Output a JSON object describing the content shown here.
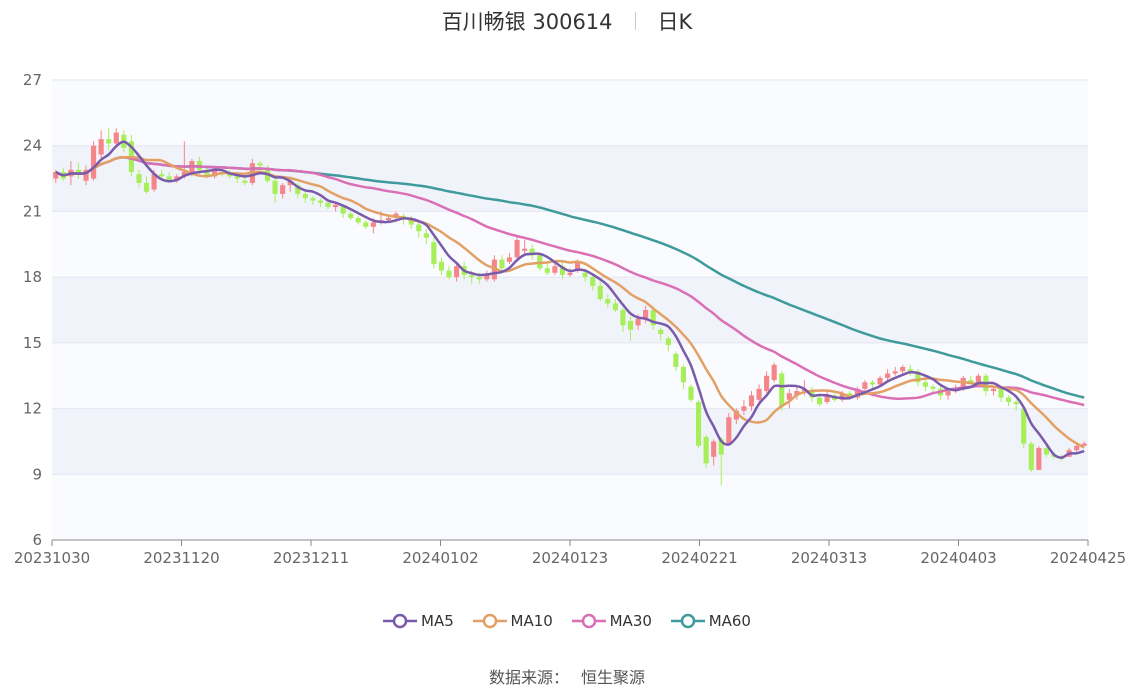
{
  "header": {
    "stock_name": "百川畅银 300614",
    "period": "日K"
  },
  "source": {
    "label": "数据来源：",
    "value": "恒生聚源"
  },
  "colors": {
    "up": "#f4868a",
    "down": "#a6ef5a",
    "band": "#f1f3fa",
    "plot_bg": "#fafbfe",
    "grid": "#e2e6f0",
    "ma5": "#7a5aab",
    "ma10": "#e3a065",
    "ma30": "#da6fb6",
    "ma60": "#3e9a9b"
  },
  "chart_data": {
    "type": "candlestick",
    "title": "百川畅银 300614 日K",
    "x_tick_labels": [
      "20231030",
      "20231120",
      "20231211",
      "20240102",
      "20240123",
      "20240221",
      "20240313",
      "20240403",
      "20240425"
    ],
    "y_ticks": [
      6,
      9,
      12,
      15,
      18,
      21,
      24,
      27
    ],
    "ylim": [
      6,
      27
    ],
    "legend": [
      {
        "name": "MA5",
        "color": "#7a5aab"
      },
      {
        "name": "MA10",
        "color": "#e3a065"
      },
      {
        "name": "MA30",
        "color": "#da6fb6"
      },
      {
        "name": "MA60",
        "color": "#3e9a9b"
      }
    ],
    "candles": [
      [
        22.5,
        22.8,
        22.9,
        22.3
      ],
      [
        22.8,
        22.5,
        23.0,
        22.4
      ],
      [
        22.6,
        22.9,
        23.3,
        22.2
      ],
      [
        22.9,
        22.7,
        23.2,
        22.5
      ],
      [
        22.4,
        22.9,
        23.1,
        22.2
      ],
      [
        22.5,
        24.0,
        24.2,
        22.4
      ],
      [
        23.6,
        24.3,
        24.7,
        23.4
      ],
      [
        24.3,
        24.1,
        24.8,
        23.8
      ],
      [
        24.1,
        24.6,
        24.8,
        23.9
      ],
      [
        24.5,
        23.9,
        24.7,
        23.7
      ],
      [
        24.2,
        22.8,
        24.5,
        22.6
      ],
      [
        22.7,
        22.3,
        22.9,
        22.1
      ],
      [
        22.3,
        21.9,
        22.6,
        21.8
      ],
      [
        22.0,
        22.7,
        22.9,
        21.9
      ],
      [
        22.7,
        22.6,
        22.9,
        22.5
      ],
      [
        22.6,
        22.4,
        22.8,
        22.3
      ],
      [
        22.4,
        22.6,
        22.7,
        22.3
      ],
      [
        22.6,
        22.8,
        24.2,
        22.5
      ],
      [
        22.8,
        23.3,
        23.4,
        22.6
      ],
      [
        23.3,
        22.9,
        23.5,
        22.7
      ],
      [
        22.9,
        22.6,
        23.1,
        22.5
      ],
      [
        22.6,
        22.9,
        23.0,
        22.5
      ],
      [
        22.8,
        22.7,
        22.9,
        22.6
      ],
      [
        22.7,
        22.6,
        22.9,
        22.5
      ],
      [
        22.6,
        22.5,
        22.8,
        22.3
      ],
      [
        22.4,
        22.3,
        22.6,
        22.2
      ],
      [
        22.3,
        23.2,
        23.4,
        22.2
      ],
      [
        23.2,
        23.1,
        23.3,
        22.9
      ],
      [
        23.0,
        22.4,
        23.1,
        22.3
      ],
      [
        22.4,
        21.8,
        22.6,
        21.4
      ],
      [
        21.8,
        22.2,
        22.3,
        21.6
      ],
      [
        22.2,
        22.4,
        22.6,
        21.9
      ],
      [
        22.2,
        21.8,
        22.3,
        21.6
      ],
      [
        21.8,
        21.6,
        21.9,
        21.4
      ],
      [
        21.6,
        21.5,
        21.7,
        21.3
      ],
      [
        21.5,
        21.4,
        21.6,
        21.2
      ],
      [
        21.4,
        21.2,
        21.5,
        21.1
      ],
      [
        21.2,
        21.3,
        21.4,
        21.0
      ],
      [
        21.2,
        20.9,
        21.3,
        20.7
      ],
      [
        20.9,
        20.7,
        21.0,
        20.6
      ],
      [
        20.7,
        20.5,
        20.8,
        20.4
      ],
      [
        20.5,
        20.3,
        20.6,
        20.2
      ],
      [
        20.3,
        20.5,
        20.7,
        20.0
      ],
      [
        20.5,
        20.6,
        21.0,
        20.4
      ],
      [
        20.6,
        20.7,
        20.8,
        20.5
      ],
      [
        20.7,
        20.9,
        21.0,
        20.5
      ],
      [
        20.8,
        20.7,
        20.9,
        20.4
      ],
      [
        20.7,
        20.4,
        20.8,
        20.2
      ],
      [
        20.4,
        20.1,
        20.5,
        19.8
      ],
      [
        20.0,
        19.8,
        20.2,
        19.5
      ],
      [
        19.6,
        18.6,
        19.8,
        18.4
      ],
      [
        18.7,
        18.3,
        18.9,
        18.1
      ],
      [
        18.3,
        18.0,
        18.5,
        17.9
      ],
      [
        18.0,
        18.5,
        18.6,
        17.8
      ],
      [
        18.5,
        18.1,
        18.7,
        17.9
      ],
      [
        18.1,
        18.0,
        18.3,
        17.7
      ],
      [
        18.0,
        17.9,
        18.2,
        17.7
      ],
      [
        17.9,
        18.1,
        18.3,
        17.8
      ],
      [
        17.9,
        18.8,
        19.0,
        17.8
      ],
      [
        18.8,
        18.4,
        19.0,
        18.3
      ],
      [
        18.7,
        18.9,
        19.1,
        18.6
      ],
      [
        18.9,
        19.7,
        19.9,
        18.7
      ],
      [
        19.2,
        19.3,
        19.7,
        19.0
      ],
      [
        19.3,
        19.0,
        19.5,
        18.8
      ],
      [
        19.0,
        18.4,
        19.1,
        18.3
      ],
      [
        18.4,
        18.2,
        18.6,
        18.1
      ],
      [
        18.2,
        18.5,
        18.7,
        18.1
      ],
      [
        18.5,
        18.1,
        18.7,
        17.9
      ],
      [
        18.1,
        18.2,
        18.4,
        18.0
      ],
      [
        18.3,
        18.7,
        18.8,
        18.2
      ],
      [
        18.2,
        18.0,
        18.4,
        17.8
      ],
      [
        18.0,
        17.6,
        18.2,
        17.4
      ],
      [
        17.6,
        17.0,
        17.8,
        16.9
      ],
      [
        17.0,
        16.8,
        17.2,
        16.6
      ],
      [
        16.8,
        16.5,
        17.0,
        16.4
      ],
      [
        16.5,
        15.8,
        16.6,
        15.5
      ],
      [
        16.0,
        15.6,
        16.2,
        15.1
      ],
      [
        15.8,
        16.1,
        16.3,
        15.6
      ],
      [
        16.1,
        16.5,
        16.7,
        15.9
      ],
      [
        16.5,
        15.8,
        16.7,
        15.6
      ],
      [
        15.6,
        15.4,
        15.7,
        15.1
      ],
      [
        15.2,
        14.9,
        15.3,
        14.6
      ],
      [
        14.5,
        13.9,
        14.6,
        13.7
      ],
      [
        13.9,
        13.2,
        14.0,
        12.9
      ],
      [
        13.0,
        12.4,
        13.1,
        12.3
      ],
      [
        12.3,
        10.3,
        12.4,
        10.2
      ],
      [
        10.7,
        9.5,
        10.8,
        9.3
      ],
      [
        9.8,
        10.5,
        10.6,
        9.4
      ],
      [
        10.6,
        9.9,
        10.7,
        8.5
      ],
      [
        10.4,
        11.6,
        11.8,
        10.3
      ],
      [
        11.5,
        11.9,
        12.0,
        11.3
      ],
      [
        11.9,
        12.1,
        12.4,
        11.7
      ],
      [
        12.1,
        12.6,
        12.8,
        11.9
      ],
      [
        12.4,
        12.9,
        13.1,
        12.2
      ],
      [
        12.8,
        13.5,
        13.7,
        12.7
      ],
      [
        13.3,
        14.0,
        14.1,
        13.2
      ],
      [
        13.6,
        12.1,
        13.7,
        11.9
      ],
      [
        12.4,
        12.7,
        12.9,
        12.0
      ],
      [
        12.6,
        12.8,
        13.0,
        12.4
      ],
      [
        12.8,
        12.9,
        13.3,
        12.6
      ],
      [
        12.8,
        12.5,
        13.0,
        12.3
      ],
      [
        12.5,
        12.2,
        12.6,
        12.1
      ],
      [
        12.3,
        12.6,
        12.8,
        12.2
      ],
      [
        12.6,
        12.4,
        12.7,
        12.3
      ],
      [
        12.4,
        12.7,
        12.8,
        12.3
      ],
      [
        12.7,
        12.5,
        12.8,
        12.4
      ],
      [
        12.5,
        12.9,
        13.0,
        12.4
      ],
      [
        12.9,
        13.2,
        13.3,
        12.8
      ],
      [
        13.2,
        13.1,
        13.3,
        12.9
      ],
      [
        13.1,
        13.4,
        13.5,
        13.0
      ],
      [
        13.4,
        13.6,
        13.8,
        13.3
      ],
      [
        13.6,
        13.7,
        13.9,
        13.5
      ],
      [
        13.7,
        13.9,
        14.0,
        13.6
      ],
      [
        13.8,
        13.7,
        14.0,
        13.5
      ],
      [
        13.7,
        13.2,
        13.8,
        13.0
      ],
      [
        13.2,
        13.0,
        13.3,
        12.8
      ],
      [
        13.0,
        12.9,
        13.1,
        12.7
      ],
      [
        12.9,
        12.6,
        13.0,
        12.4
      ],
      [
        12.6,
        12.8,
        12.9,
        12.4
      ],
      [
        12.8,
        12.9,
        13.1,
        12.7
      ],
      [
        12.9,
        13.4,
        13.5,
        12.8
      ],
      [
        13.3,
        13.2,
        13.5,
        13.1
      ],
      [
        13.2,
        13.5,
        13.6,
        13.1
      ],
      [
        13.5,
        12.8,
        13.6,
        12.6
      ],
      [
        12.8,
        12.9,
        13.0,
        12.6
      ],
      [
        12.9,
        12.5,
        13.0,
        12.3
      ],
      [
        12.5,
        12.3,
        12.6,
        12.1
      ],
      [
        12.3,
        12.2,
        12.4,
        11.9
      ],
      [
        12.0,
        10.4,
        12.1,
        10.2
      ],
      [
        10.4,
        9.2,
        10.5,
        9.1
      ],
      [
        9.2,
        10.2,
        10.3,
        9.2
      ],
      [
        10.2,
        9.9,
        10.3,
        9.8
      ],
      [
        9.9,
        9.8,
        10.0,
        9.7
      ],
      [
        9.8,
        9.7,
        9.9,
        9.6
      ],
      [
        9.8,
        10.1,
        10.2,
        9.8
      ],
      [
        10.1,
        10.3,
        10.4,
        10.0
      ],
      [
        10.3,
        10.4,
        10.5,
        10.3
      ]
    ]
  }
}
